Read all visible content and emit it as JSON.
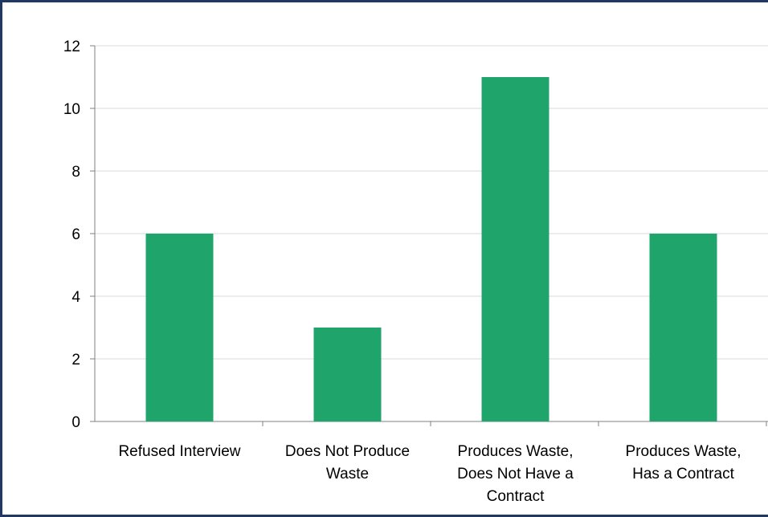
{
  "chart_data": {
    "type": "bar",
    "categories": [
      [
        "Refused Interview"
      ],
      [
        "Does Not Produce",
        "Waste"
      ],
      [
        "Produces Waste,",
        "Does Not Have a",
        "Contract"
      ],
      [
        "Produces Waste,",
        "Has a Contract"
      ]
    ],
    "values": [
      6,
      3,
      11,
      6
    ],
    "ylim": [
      0,
      12
    ],
    "yticks": [
      0,
      2,
      4,
      6,
      8,
      10,
      12
    ],
    "grid": true,
    "title": "",
    "xlabel": "",
    "ylabel": "",
    "colors": {
      "bar": "#1fa56b",
      "grid": "#d9d9d9",
      "axis": "#808080",
      "frame": "#1f3864"
    }
  }
}
